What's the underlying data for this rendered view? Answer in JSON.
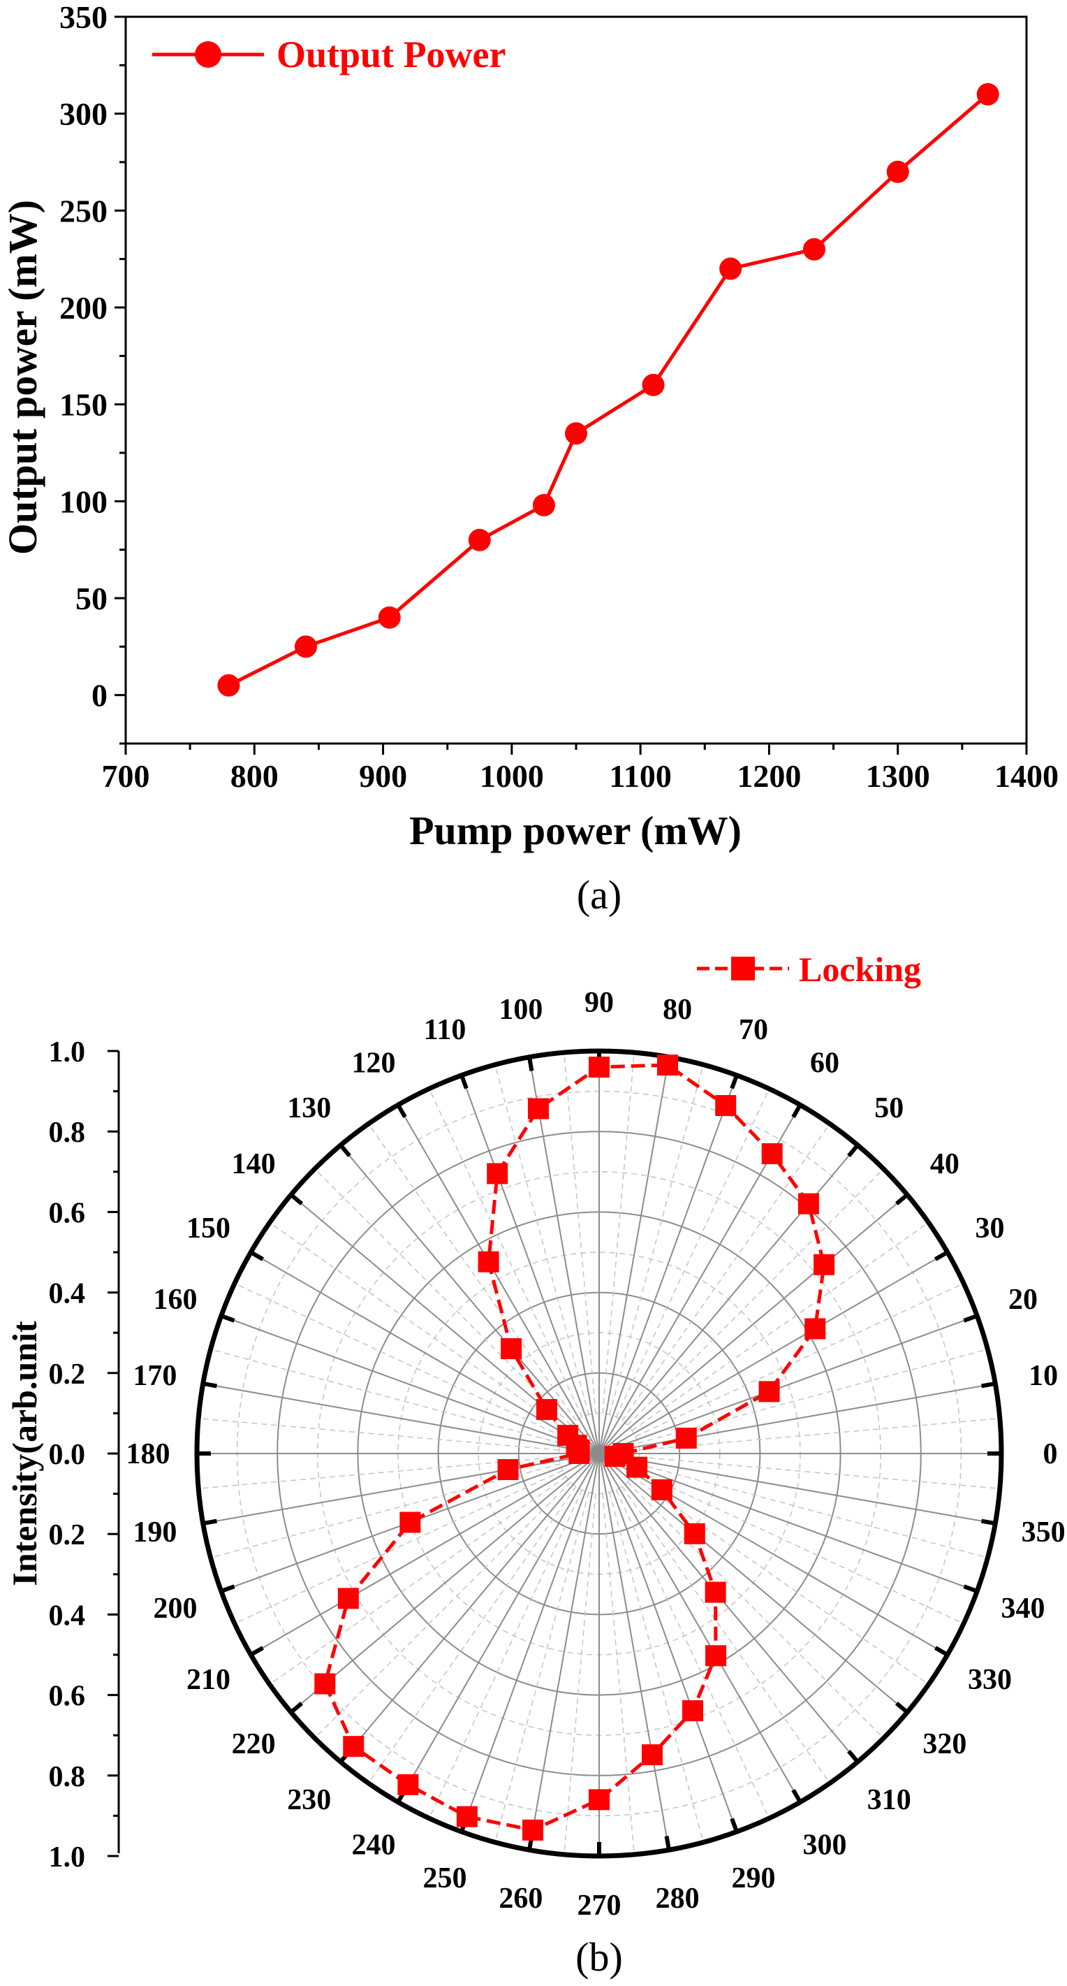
{
  "colors": {
    "series": "#ff0000",
    "axis": "#000000",
    "grid_solid": "#8c8c8c",
    "grid_dash": "#c4c4c4"
  },
  "chart_data": [
    {
      "type": "line",
      "marker": "circle",
      "xlabel": "Pump power (mW)",
      "ylabel": "Output  power (mW)",
      "xlim": [
        700,
        1400
      ],
      "ylim": [
        -25,
        350
      ],
      "xticks": [
        "700",
        "800",
        "900",
        "1000",
        "1100",
        "1200",
        "1300",
        "1400"
      ],
      "yticks": [
        "0",
        "50",
        "100",
        "150",
        "200",
        "250",
        "300",
        "350"
      ],
      "legend_position": "top-left",
      "caption": "(a)",
      "series": [
        {
          "name": "Output Power",
          "x": [
            780,
            840,
            905,
            975,
            1025,
            1050,
            1110,
            1170,
            1235,
            1300,
            1370
          ],
          "y": [
            5,
            25,
            40,
            80,
            98,
            135,
            160,
            220,
            230,
            270,
            310
          ]
        }
      ]
    },
    {
      "type": "polar",
      "marker": "square",
      "ylabel": "Intensity(arb.unit",
      "rlim": [
        0,
        1.0
      ],
      "rticks": [
        "1.0",
        "0.8",
        "0.6",
        "0.4",
        "0.2",
        "0.0",
        "0.2",
        "0.4",
        "0.6",
        "0.8",
        "1.0"
      ],
      "angle_ticks": [
        "0",
        "10",
        "20",
        "30",
        "40",
        "50",
        "60",
        "70",
        "80",
        "90",
        "100",
        "110",
        "120",
        "130",
        "140",
        "150",
        "160",
        "170",
        "180",
        "190",
        "200",
        "210",
        "220",
        "230",
        "240",
        "250",
        "260",
        "270",
        "280",
        "290",
        "300",
        "310",
        "320",
        "330",
        "340",
        "350"
      ],
      "legend_position": "top-right",
      "caption": "(b)",
      "series": [
        {
          "name": "Locking",
          "theta": [
            0,
            10,
            20,
            30,
            40,
            50,
            60,
            70,
            80,
            90,
            100,
            110,
            120,
            130,
            140,
            150,
            160,
            170,
            180,
            190,
            200,
            210,
            220,
            230,
            240,
            250,
            260,
            270,
            280,
            290,
            300,
            310,
            320,
            330,
            340,
            350
          ],
          "r": [
            0.06,
            0.22,
            0.45,
            0.62,
            0.73,
            0.81,
            0.86,
            0.92,
            0.98,
            0.96,
            0.87,
            0.74,
            0.55,
            0.34,
            0.17,
            0.09,
            0.06,
            0.05,
            0.05,
            0.23,
            0.5,
            0.72,
            0.89,
            0.95,
            0.95,
            0.96,
            0.95,
            0.86,
            0.76,
            0.68,
            0.58,
            0.45,
            0.31,
            0.18,
            0.1,
            0.04
          ]
        }
      ]
    }
  ]
}
